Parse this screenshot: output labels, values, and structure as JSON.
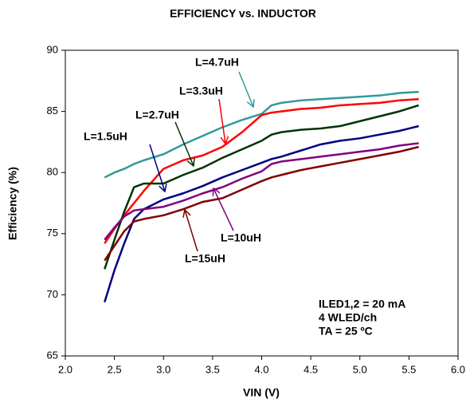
{
  "chart_data": {
    "type": "line",
    "title": "EFFICIENCY vs. INDUCTOR",
    "xlabel": "VIN (V)",
    "ylabel": "Efficiency (%)",
    "x": [
      2.4,
      2.5,
      2.6,
      2.7,
      2.8,
      3.0,
      3.2,
      3.4,
      3.6,
      3.8,
      4.0,
      4.1,
      4.2,
      4.4,
      4.6,
      4.8,
      5.0,
      5.2,
      5.4,
      5.6
    ],
    "series": [
      {
        "name": "L=4.7uH",
        "color": "#339999",
        "values": [
          79.6,
          80.0,
          80.3,
          80.7,
          81.0,
          81.5,
          82.3,
          83.0,
          83.7,
          84.3,
          84.8,
          85.5,
          85.7,
          85.9,
          86.0,
          86.1,
          86.2,
          86.3,
          86.5,
          86.6
        ]
      },
      {
        "name": "L=3.3uH",
        "color": "#ff0000",
        "values": [
          74.2,
          75.4,
          76.5,
          77.5,
          78.5,
          80.3,
          81.0,
          81.4,
          82.1,
          83.3,
          84.7,
          84.9,
          85.0,
          85.2,
          85.3,
          85.5,
          85.6,
          85.7,
          85.9,
          86.0
        ]
      },
      {
        "name": "L=2.7uH",
        "color": "#003300",
        "values": [
          72.1,
          74.5,
          76.8,
          78.8,
          79.1,
          79.1,
          79.8,
          80.4,
          81.2,
          81.9,
          82.6,
          83.1,
          83.3,
          83.5,
          83.6,
          83.8,
          84.2,
          84.6,
          85.0,
          85.5
        ]
      },
      {
        "name": "L=1.5uH",
        "color": "#000080",
        "values": [
          69.4,
          72.0,
          74.2,
          76.2,
          77.0,
          77.8,
          78.3,
          78.9,
          79.6,
          80.2,
          80.8,
          81.1,
          81.3,
          81.8,
          82.3,
          82.6,
          82.8,
          83.1,
          83.4,
          83.8
        ]
      },
      {
        "name": "L=10uH",
        "color": "#800080",
        "values": [
          74.5,
          75.5,
          76.4,
          76.9,
          77.0,
          77.2,
          77.7,
          78.3,
          78.8,
          79.5,
          80.1,
          80.7,
          80.9,
          81.1,
          81.3,
          81.5,
          81.7,
          81.9,
          82.2,
          82.4
        ]
      },
      {
        "name": "L=15uH",
        "color": "#800000",
        "values": [
          72.8,
          74.0,
          75.2,
          76.0,
          76.2,
          76.5,
          77.0,
          77.6,
          77.9,
          78.6,
          79.3,
          79.6,
          79.8,
          80.2,
          80.5,
          80.8,
          81.1,
          81.4,
          81.7,
          82.1
        ]
      }
    ],
    "xlim": [
      2.0,
      6.0
    ],
    "xticks": [
      {
        "value": 2.0,
        "label": "2.0"
      },
      {
        "value": 2.5,
        "label": "2.5"
      },
      {
        "value": 3.0,
        "label": "3.0"
      },
      {
        "value": 3.5,
        "label": "3.5"
      },
      {
        "value": 4.0,
        "label": "4.0"
      },
      {
        "value": 4.5,
        "label": "4.5"
      },
      {
        "value": 5.0,
        "label": "5.0"
      },
      {
        "value": 5.5,
        "label": "5.5"
      },
      {
        "value": 6.0,
        "label": "6.0"
      }
    ],
    "ylim": [
      65,
      90
    ],
    "yticks": [
      65,
      70,
      75,
      80,
      85,
      90
    ],
    "grid": false,
    "annotations": [
      "ILED1,2 = 20 mA",
      "4 WLED/ch",
      "TA = 25 ºC"
    ]
  }
}
